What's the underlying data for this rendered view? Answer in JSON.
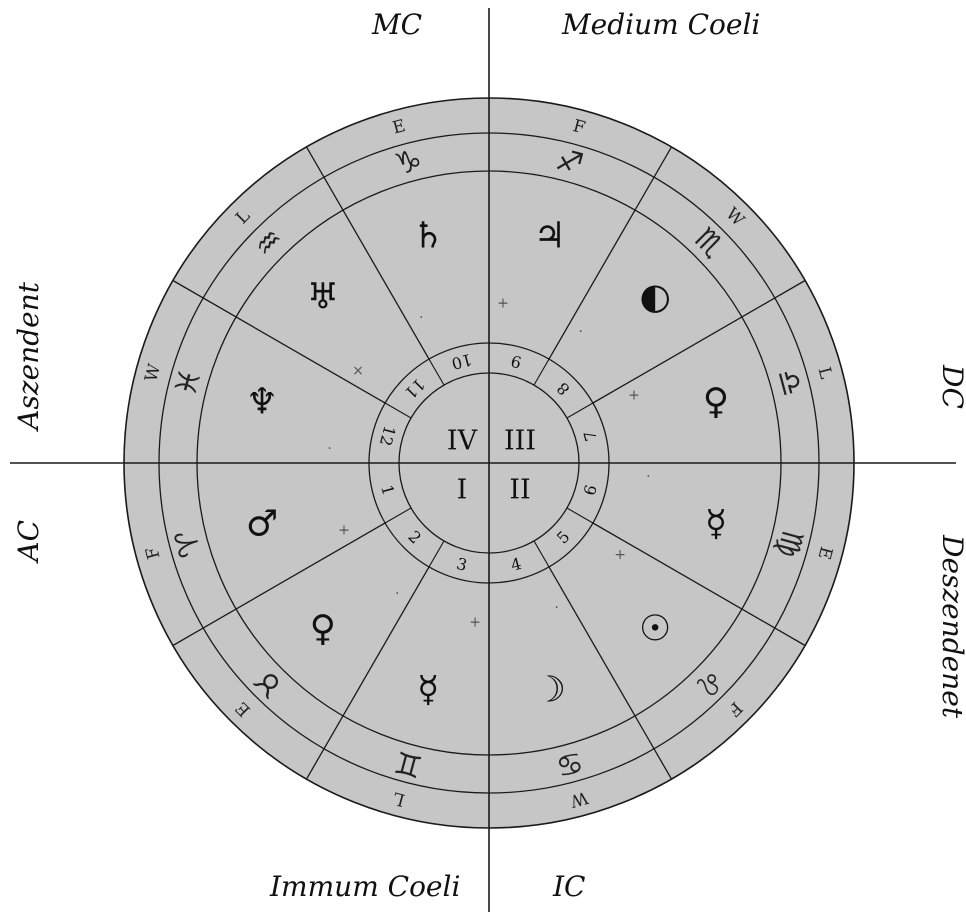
{
  "labels": {
    "mc": "MC",
    "medium_coeli": "Medium Coeli",
    "aszendent": "Aszendent",
    "dc": "DC",
    "ac": "AC",
    "deszendenet": "Deszendenet",
    "immum_coeli": "Immum Coeli",
    "ic": "IC"
  },
  "colors": {
    "disc_fill": "#c6c6c6",
    "ink": "#1a1a1a",
    "background": "#ffffff"
  },
  "segments": [
    {
      "element": "E",
      "sign": "♑",
      "planet": "♄"
    },
    {
      "element": "F",
      "sign": "♐",
      "planet": "♃"
    },
    {
      "element": "W",
      "sign": "♏",
      "planet": "◐"
    },
    {
      "element": "L",
      "sign": "♎",
      "planet": "♀"
    },
    {
      "element": "E",
      "sign": "♍",
      "planet": "☿"
    },
    {
      "element": "F",
      "sign": "♌",
      "planet": "☉"
    },
    {
      "element": "W",
      "sign": "♋",
      "planet": "☽"
    },
    {
      "element": "L",
      "sign": "♊",
      "planet": "☿"
    },
    {
      "element": "E",
      "sign": "♉",
      "planet": "♀"
    },
    {
      "element": "F",
      "sign": "♈",
      "planet": "♂"
    },
    {
      "element": "W",
      "sign": "♓",
      "planet": "♆"
    },
    {
      "element": "L",
      "sign": "♒",
      "planet": "♅"
    }
  ],
  "houses": [
    "1",
    "2",
    "3",
    "4",
    "5",
    "6",
    "7",
    "8",
    "9",
    "10",
    "11",
    "12"
  ],
  "quadrants": [
    "I",
    "II",
    "III",
    "IV"
  ],
  "aspect_marks": [
    "+",
    "·",
    "+",
    "·",
    "+",
    "·",
    "+",
    "·",
    "+",
    "·",
    "×",
    "·"
  ]
}
